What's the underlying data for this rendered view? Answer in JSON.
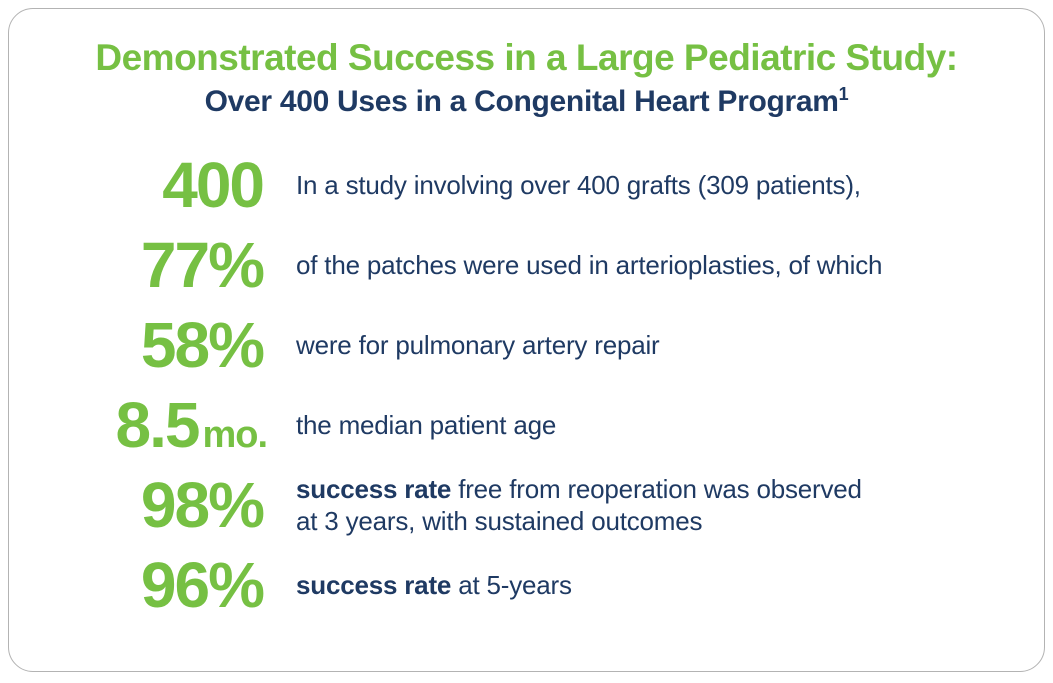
{
  "card": {
    "title": {
      "line1": "Demonstrated Success in a Large Pediatric Study:",
      "line2": "Over 400 Uses in a Congenital Heart Program",
      "superscript": "1"
    },
    "colors": {
      "accent_green": "#76c043",
      "navy_text": "#1f3a63",
      "card_border": "#b3b3b3",
      "background": "#ffffff"
    },
    "stats": [
      {
        "value": "400",
        "unit": "",
        "bold": "",
        "text": "In a study involving over 400 grafts (309 patients),",
        "text2": ""
      },
      {
        "value": "77%",
        "unit": "",
        "bold": "",
        "text": "of the patches were used in arterioplasties, of which",
        "text2": ""
      },
      {
        "value": "58%",
        "unit": "",
        "bold": "",
        "text": "were for pulmonary artery repair",
        "text2": ""
      },
      {
        "value": "8.5",
        "unit": "mo.",
        "bold": "",
        "text": "the median patient age",
        "text2": ""
      },
      {
        "value": "98%",
        "unit": "",
        "bold": "success rate",
        "text": " free from reoperation was observed",
        "text2": "at 3 years, with sustained outcomes"
      },
      {
        "value": "96%",
        "unit": "",
        "bold": "success rate",
        "text": " at 5-years",
        "text2": ""
      }
    ]
  }
}
